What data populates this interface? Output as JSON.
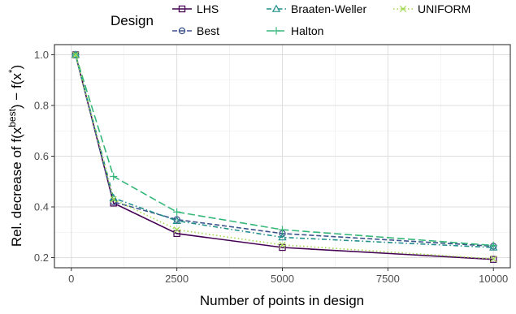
{
  "chart_data": {
    "type": "line",
    "xlabel": "Number of points in design",
    "ylabel": "Rel. decrease of f(x",
    "ylabel_sup1": "best",
    "ylabel_mid": ") − f(x",
    "ylabel_sup2": "*",
    "ylabel_end": ")",
    "xlim": [
      0,
      10000
    ],
    "ylim": [
      0.2,
      1.0
    ],
    "xticks": [
      0,
      2500,
      5000,
      7500,
      10000
    ],
    "yticks": [
      0.2,
      0.4,
      0.6,
      0.8,
      1.0
    ],
    "xtick_labels": [
      "0",
      "2500",
      "5000",
      "7500",
      "10000"
    ],
    "ytick_labels": [
      "0.2",
      "0.4",
      "0.6",
      "0.8",
      "1.0"
    ],
    "grid": true,
    "legend_title": "Design",
    "legend_position": "top",
    "x": [
      100,
      1000,
      2500,
      5000,
      10000
    ],
    "series": [
      {
        "name": "LHS",
        "color": "#440154",
        "linestyle": "solid",
        "marker": "square",
        "values": [
          1.0,
          0.415,
          0.295,
          0.24,
          0.193
        ]
      },
      {
        "name": "Best",
        "color": "#3b528b",
        "linestyle": "dashed",
        "marker": "circle",
        "values": [
          1.0,
          0.42,
          0.35,
          0.295,
          0.245
        ]
      },
      {
        "name": "Braaten-Weller",
        "color": "#21908c",
        "linestyle": "dashdot",
        "marker": "triangle",
        "values": [
          1.0,
          0.435,
          0.345,
          0.28,
          0.24
        ]
      },
      {
        "name": "Halton",
        "color": "#35b779",
        "linestyle": "longdash",
        "marker": "plus",
        "values": [
          1.0,
          0.52,
          0.38,
          0.31,
          0.248
        ]
      },
      {
        "name": "UNIFORM",
        "color": "#a0d94c",
        "linestyle": "dotted",
        "marker": "cross",
        "values": [
          1.0,
          0.43,
          0.31,
          0.25,
          0.195
        ]
      }
    ]
  }
}
